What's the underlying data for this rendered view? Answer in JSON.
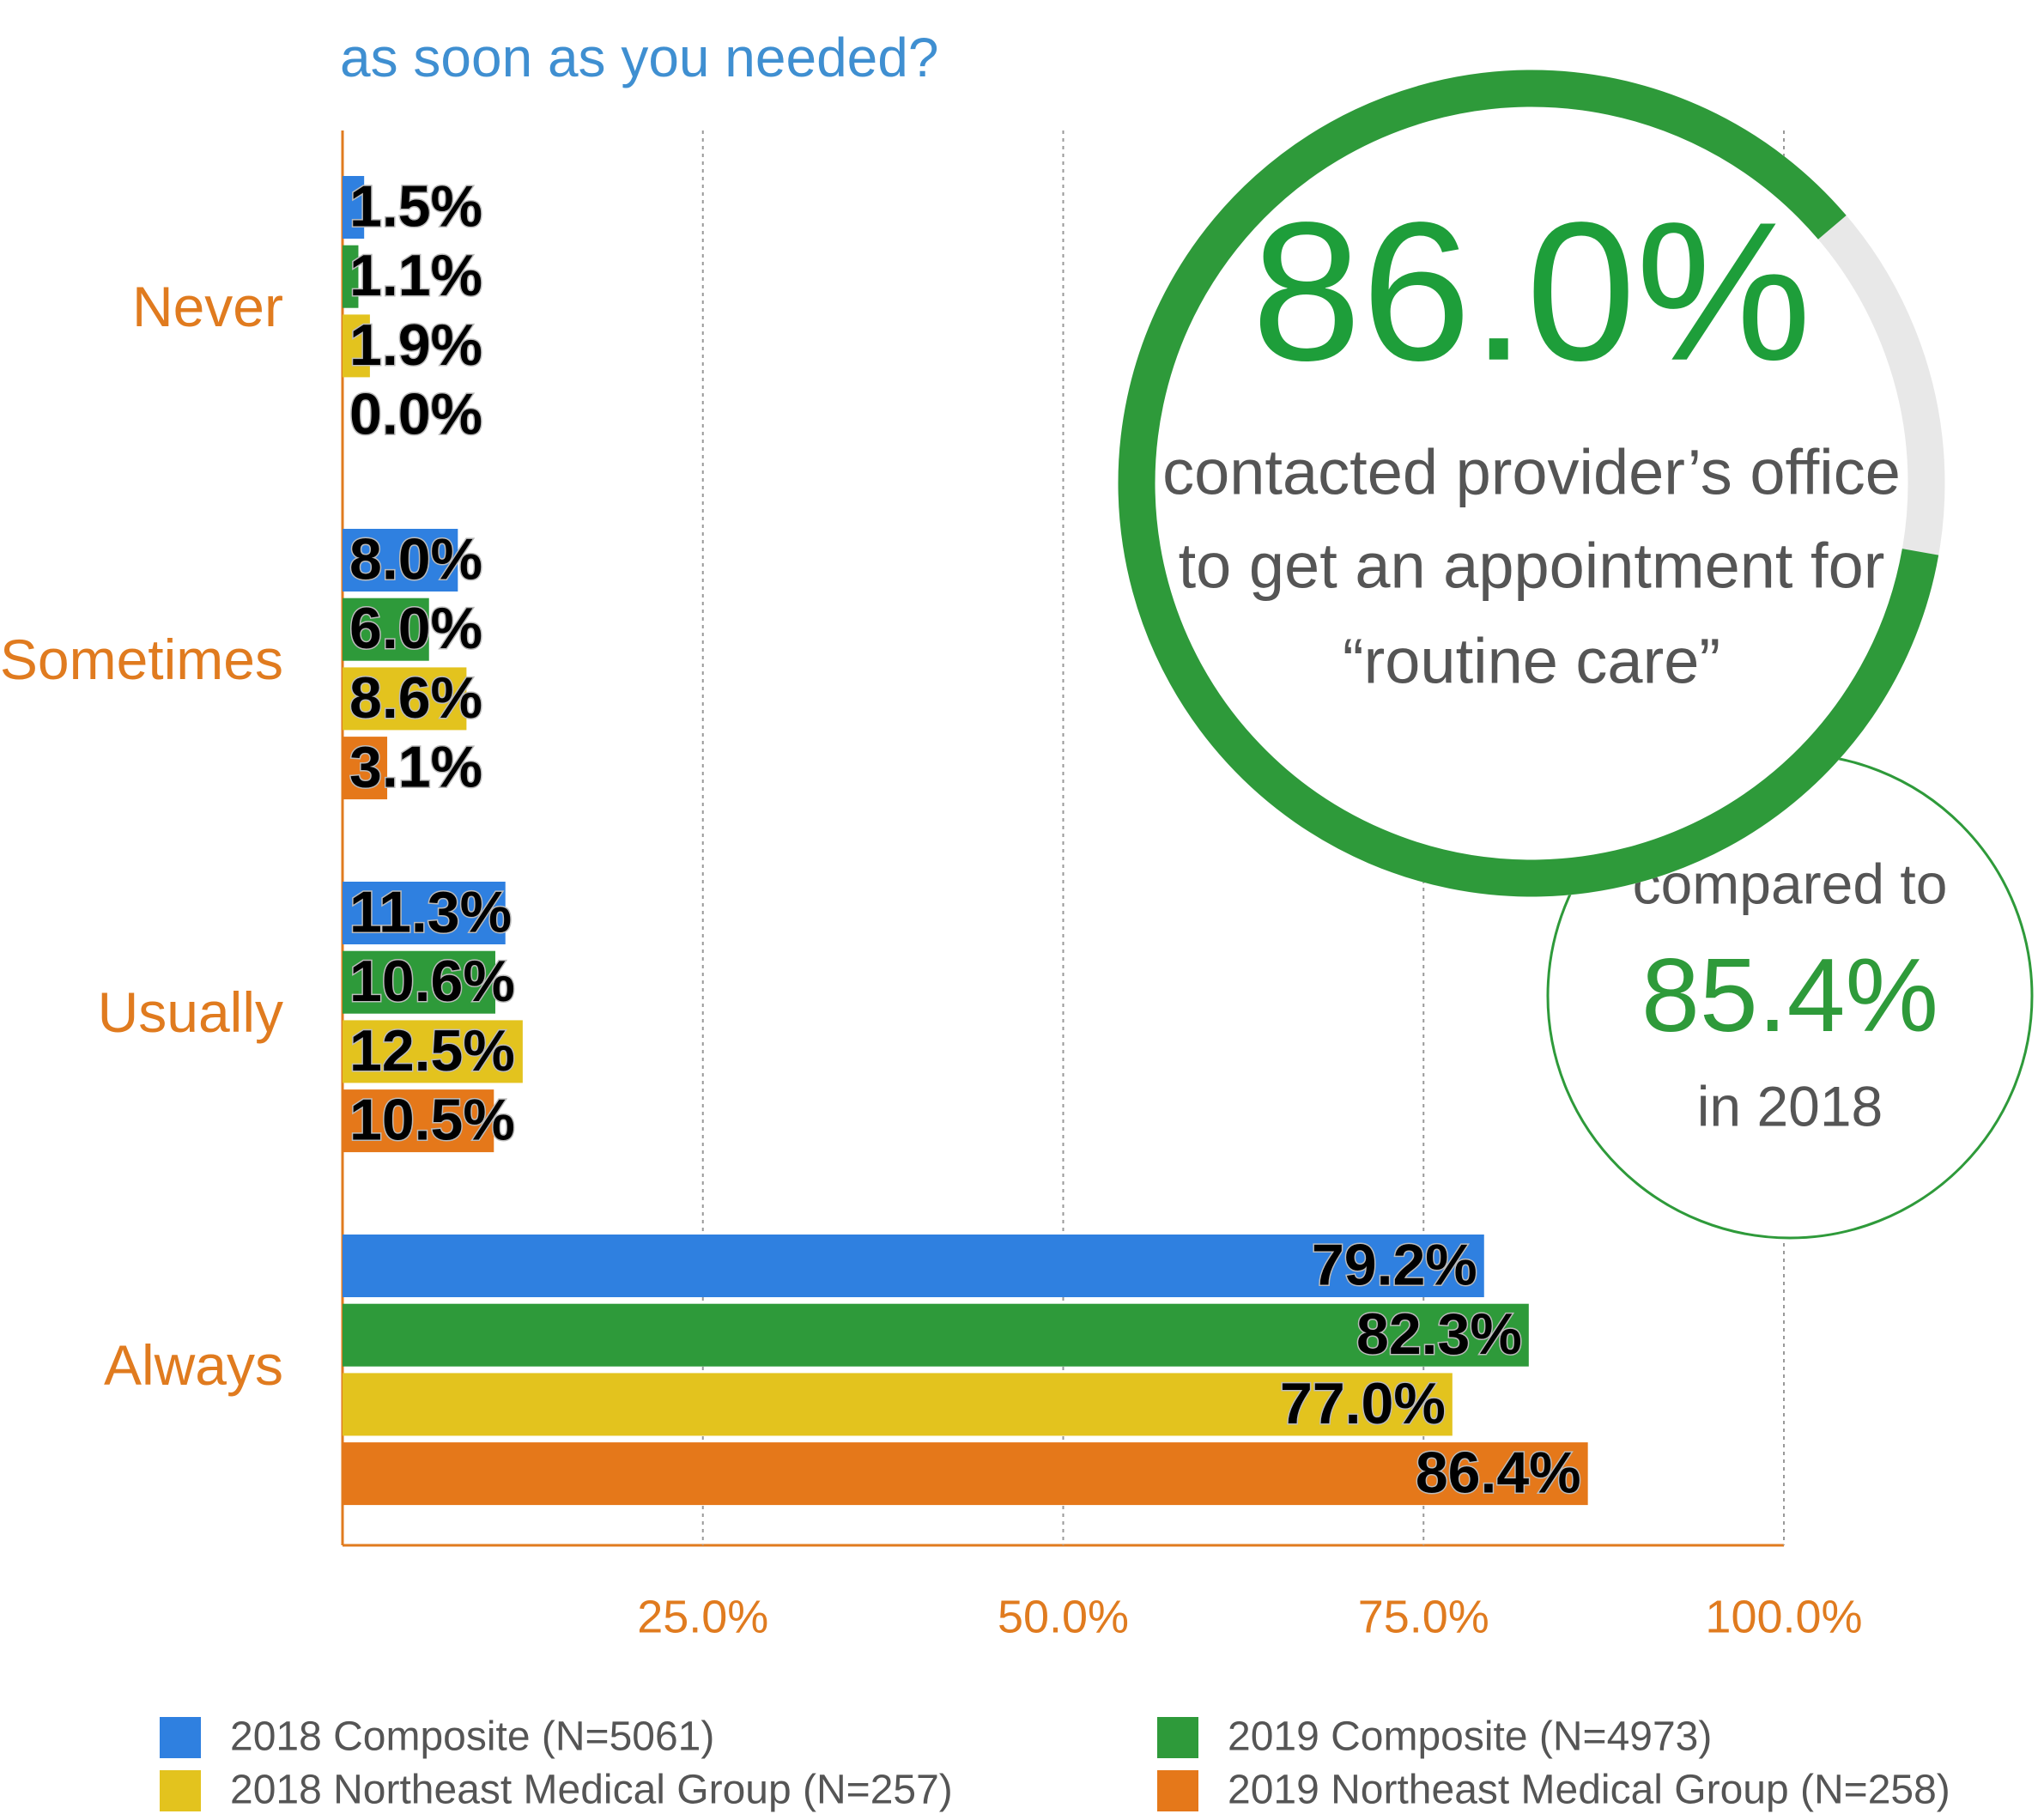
{
  "chart_data": {
    "type": "hbar",
    "title": "as soon as you needed?",
    "categories": [
      "Never",
      "Sometimes",
      "Usually",
      "Always"
    ],
    "series": [
      {
        "name": "2018 Composite (N=5061)",
        "color": "#2f80e0",
        "values": [
          1.5,
          8.0,
          11.3,
          79.2
        ],
        "value_labels": [
          "1.5%",
          "8.0%",
          "11.3%",
          "79.2%"
        ]
      },
      {
        "name": "2019 Composite (N=4973)",
        "color": "#2e9a3a",
        "values": [
          1.1,
          6.0,
          10.6,
          82.3
        ],
        "value_labels": [
          "1.1%",
          "6.0%",
          "10.6%",
          "82.3%"
        ]
      },
      {
        "name": "2018 Northeast Medical Group (N=257)",
        "color": "#e3c31e",
        "values": [
          1.9,
          8.6,
          12.5,
          77.0
        ],
        "value_labels": [
          "1.9%",
          "8.6%",
          "12.5%",
          "77.0%"
        ]
      },
      {
        "name": "2019 Northeast Medical Group (N=258)",
        "color": "#e5781a",
        "values": [
          0.0,
          3.1,
          10.5,
          86.4
        ],
        "value_labels": [
          "0.0%",
          "3.1%",
          "10.5%",
          "86.4%"
        ]
      }
    ],
    "xlim": [
      0,
      100
    ],
    "xticks": [
      {
        "value": 25,
        "label": "25.0%"
      },
      {
        "value": 50,
        "label": "50.0%"
      },
      {
        "value": 75,
        "label": "75.0%"
      },
      {
        "value": 100,
        "label": "100.0%"
      }
    ],
    "grid": true,
    "callout": {
      "value": 86.0,
      "label": "86.0%",
      "text": [
        "contacted provider’s office",
        "to get an appointment for",
        "“routine care”"
      ]
    },
    "comparison": {
      "before": "compared to",
      "label": "85.4%",
      "after": "in 2018"
    }
  }
}
